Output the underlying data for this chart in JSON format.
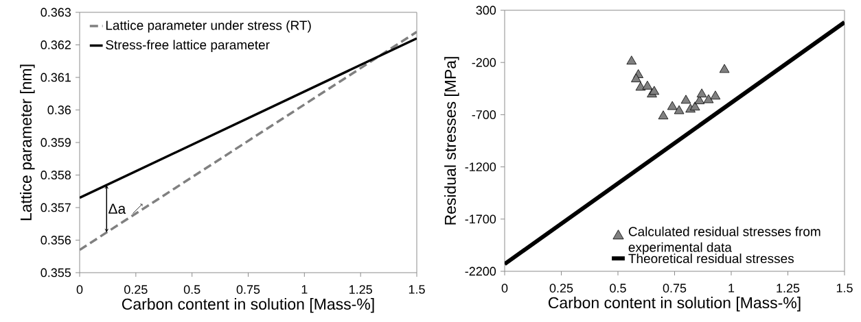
{
  "chart_data": [
    {
      "type": "line",
      "xlabel": "Carbon content in solution [Mass-%]",
      "ylabel": "Lattice parameter [nm]",
      "xlim": [
        0,
        1.5
      ],
      "xticks": [
        0,
        0.25,
        0.5,
        0.75,
        1,
        1.25,
        1.5
      ],
      "ylim": [
        0.355,
        0.363
      ],
      "yticks": [
        0.355,
        0.356,
        0.357,
        0.358,
        0.359,
        0.36,
        0.361,
        0.362,
        0.363
      ],
      "legend": "top left",
      "marker": "none",
      "series": [
        {
          "name": "Lattice parameter under stress (RT)",
          "color": "#808080",
          "line_style": "dashed",
          "x": [
            0,
            1.5
          ],
          "values": [
            0.3557,
            0.3624
          ]
        },
        {
          "name": "Stress-free lattice parameter",
          "color": "#000000",
          "line_style": "solid",
          "x": [
            0,
            1.5
          ],
          "values": [
            0.3573,
            0.3622
          ]
        }
      ],
      "annotations": [
        "Δa"
      ]
    },
    {
      "type": "scatter",
      "xlabel": "Carbon content in solution [Mass-%]",
      "ylabel": "Residual stresses [MPa]",
      "xlim": [
        0,
        1.5
      ],
      "xticks": [
        0,
        0.25,
        0.5,
        0.75,
        1,
        1.25,
        1.5
      ],
      "ylim": [
        -2200,
        300
      ],
      "yticks": [
        -2200,
        -1700,
        -1200,
        -700,
        -200,
        300
      ],
      "legend": "bottom right",
      "series": [
        {
          "name": "Calculated residual stresses from experimental data",
          "color": "#808080",
          "marker": "triangle",
          "x": [
            0.56,
            0.59,
            0.58,
            0.6,
            0.63,
            0.65,
            0.66,
            0.7,
            0.74,
            0.77,
            0.8,
            0.82,
            0.84,
            0.86,
            0.87,
            0.9,
            0.93,
            0.97
          ],
          "values": [
            -190,
            -320,
            -360,
            -440,
            -430,
            -505,
            -480,
            -715,
            -625,
            -665,
            -565,
            -650,
            -630,
            -570,
            -505,
            -560,
            -525,
            -270
          ]
        },
        {
          "name": "Theoretical residual stresses",
          "type": "line",
          "color": "#000000",
          "line_style": "solid",
          "marker": "none",
          "x": [
            0,
            1.5
          ],
          "values": [
            -2130,
            185
          ]
        }
      ]
    }
  ]
}
